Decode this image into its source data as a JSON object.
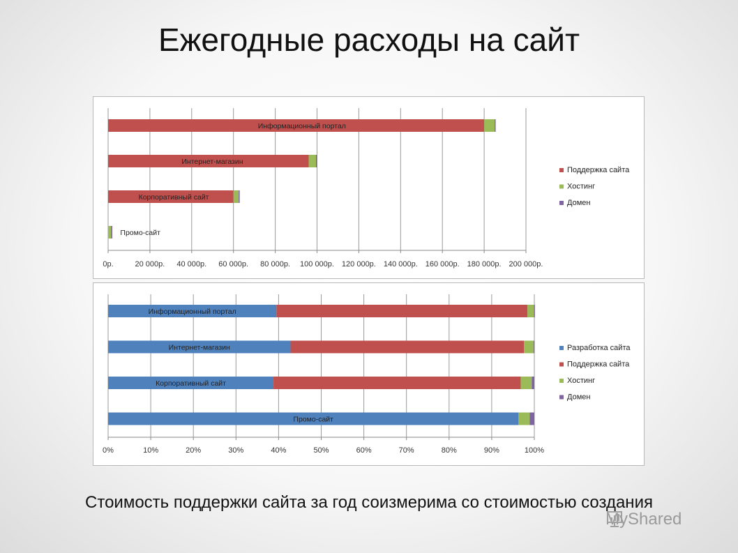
{
  "title": "Ежегодные расходы на сайт",
  "caption": "Стоимость поддержки сайта за год соизмерима со стоимостью создания",
  "watermark": "MyShared",
  "colors": {
    "dev": "#4f81bd",
    "support": "#c0504d",
    "hosting": "#9bbb59",
    "domain": "#8064a2"
  },
  "chart_data": [
    {
      "type": "bar",
      "orientation": "horizontal",
      "stacked": true,
      "categories": [
        "Информационный портал",
        "Интернет-магазин",
        "Корпоративный сайт",
        "Промо-сайт"
      ],
      "series": [
        {
          "name": "Поддержка сайта",
          "color": "#c0504d",
          "values": [
            180000,
            96000,
            60000,
            0
          ]
        },
        {
          "name": "Хостинг",
          "color": "#9bbb59",
          "values": [
            5000,
            3500,
            2500,
            1500
          ]
        },
        {
          "name": "Домен",
          "color": "#8064a2",
          "values": [
            500,
            300,
            300,
            300
          ]
        }
      ],
      "xlim": [
        0,
        200000
      ],
      "tick_labels": [
        "0р.",
        "20 000р.",
        "40 000р.",
        "60 000р.",
        "80 000р.",
        "100 000р.",
        "120 000р.",
        "140 000р.",
        "160 000р.",
        "180 000р.",
        "200 000р."
      ],
      "grid": true,
      "legend": "right"
    },
    {
      "type": "bar",
      "orientation": "horizontal",
      "stacked": true,
      "percent": true,
      "categories": [
        "Информационный портал",
        "Интернет-магазин",
        "Корпоративный сайт",
        "Промо-сайт"
      ],
      "series": [
        {
          "name": "Разработка сайта",
          "color": "#4f81bd",
          "values": [
            39.5,
            42.8,
            38.8,
            96.3
          ]
        },
        {
          "name": "Поддержка сайта",
          "color": "#c0504d",
          "values": [
            58.9,
            54.8,
            58.0,
            0
          ]
        },
        {
          "name": "Хостинг",
          "color": "#9bbb59",
          "values": [
            1.5,
            2.2,
            2.6,
            2.6
          ]
        },
        {
          "name": "Домен",
          "color": "#8064a2",
          "values": [
            0.1,
            0.2,
            0.6,
            1.1
          ]
        }
      ],
      "xlim": [
        0,
        100
      ],
      "tick_labels": [
        "0%",
        "10%",
        "20%",
        "30%",
        "40%",
        "50%",
        "60%",
        "70%",
        "80%",
        "90%",
        "100%"
      ],
      "grid": true,
      "legend": "right"
    }
  ]
}
